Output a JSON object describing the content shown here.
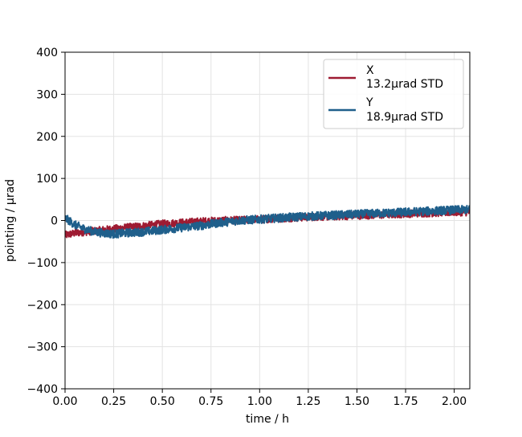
{
  "chart_data": {
    "type": "line",
    "xlabel": "time / h",
    "ylabel": "pointing / µrad",
    "xlim": [
      0.0,
      2.08
    ],
    "ylim": [
      -400,
      400
    ],
    "x_ticks": [
      0.0,
      0.25,
      0.5,
      0.75,
      1.0,
      1.25,
      1.5,
      1.75,
      2.0
    ],
    "x_tick_labels": [
      "0.00",
      "0.25",
      "0.50",
      "0.75",
      "1.00",
      "1.25",
      "1.50",
      "1.75",
      "2.00"
    ],
    "y_ticks": [
      -400,
      -300,
      -200,
      -100,
      0,
      100,
      200,
      300,
      400
    ],
    "y_tick_labels": [
      "−400",
      "−300",
      "−200",
      "−100",
      "0",
      "100",
      "200",
      "300",
      "400"
    ],
    "grid": true,
    "legend_position": "top-right",
    "series": [
      {
        "name": "X",
        "std_label": "13.2µrad STD",
        "color": "#9e1b32",
        "x": [
          0.0,
          0.05,
          0.1,
          0.15,
          0.2,
          0.25,
          0.3,
          0.4,
          0.5,
          0.6,
          0.7,
          0.8,
          0.9,
          1.0,
          1.1,
          1.2,
          1.3,
          1.4,
          1.5,
          1.6,
          1.7,
          1.8,
          1.9,
          2.0,
          2.08
        ],
        "y": [
          -35,
          -30,
          -27,
          -25,
          -22,
          -20,
          -17,
          -13,
          -8,
          -5,
          -2,
          0,
          1,
          3,
          5,
          7,
          9,
          10,
          12,
          13,
          15,
          17,
          18,
          20,
          20
        ],
        "noise": 9
      },
      {
        "name": "Y",
        "std_label": "18.9µrad STD",
        "color": "#1f5f8b",
        "x": [
          0.0,
          0.02,
          0.05,
          0.1,
          0.15,
          0.2,
          0.25,
          0.3,
          0.4,
          0.5,
          0.6,
          0.7,
          0.8,
          0.9,
          1.0,
          1.1,
          1.2,
          1.3,
          1.4,
          1.5,
          1.6,
          1.7,
          1.8,
          1.9,
          2.0,
          2.08
        ],
        "y": [
          5,
          0,
          -10,
          -20,
          -27,
          -30,
          -32,
          -30,
          -27,
          -22,
          -17,
          -12,
          -5,
          0,
          3,
          6,
          9,
          11,
          13,
          15,
          17,
          19,
          21,
          23,
          25,
          26
        ],
        "noise": 10
      }
    ]
  }
}
